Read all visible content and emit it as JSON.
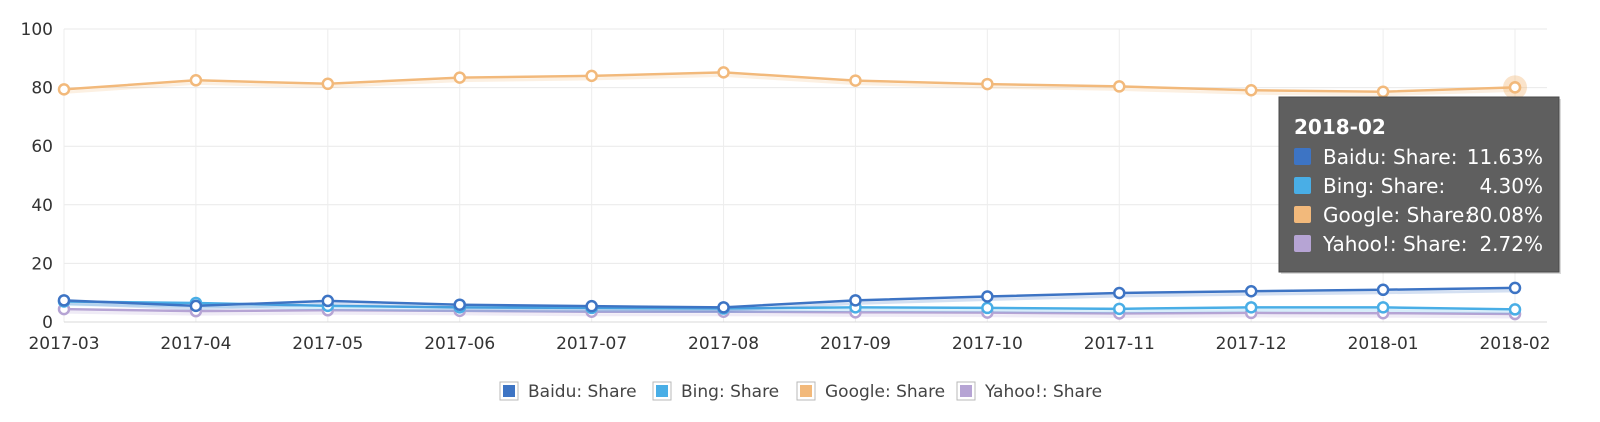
{
  "chart_data": {
    "type": "line",
    "categories": [
      "2017-03",
      "2017-04",
      "2017-05",
      "2017-06",
      "2017-07",
      "2017-08",
      "2017-09",
      "2017-10",
      "2017-11",
      "2017-12",
      "2018-01",
      "2018-02"
    ],
    "ylim": [
      0,
      100
    ],
    "yticks": [
      0,
      20,
      40,
      60,
      80,
      100
    ],
    "grid": true,
    "legend_position": "bottom",
    "series": [
      {
        "name": "Baidu: Share",
        "color": "#3d74c4",
        "values": [
          7.4,
          5.5,
          7.2,
          5.9,
          5.4,
          5.0,
          7.4,
          8.7,
          9.9,
          10.5,
          11.0,
          11.63
        ]
      },
      {
        "name": "Bing: Share",
        "color": "#49aee6",
        "values": [
          7.0,
          6.5,
          5.5,
          5.0,
          4.8,
          4.6,
          5.0,
          4.8,
          4.5,
          5.0,
          5.0,
          4.3
        ]
      },
      {
        "name": "Google: Share",
        "color": "#f2b97b",
        "values": [
          79.4,
          82.5,
          81.3,
          83.4,
          84.0,
          85.2,
          82.4,
          81.2,
          80.4,
          79.1,
          78.6,
          80.08
        ]
      },
      {
        "name": "Yahoo!: Share",
        "color": "#b6a4d4",
        "values": [
          4.4,
          3.7,
          4.0,
          3.8,
          3.5,
          3.5,
          3.3,
          3.2,
          2.9,
          3.1,
          3.0,
          2.72
        ]
      }
    ],
    "tooltip": {
      "title": "2018-02",
      "category_index": 11,
      "rows": [
        {
          "label": "Baidu: Share:",
          "value": "11.63%",
          "color": "#3d74c4"
        },
        {
          "label": "Bing: Share:",
          "value": "4.30%",
          "color": "#49aee6"
        },
        {
          "label": "Google: Share:",
          "value": "80.08%",
          "color": "#f2b97b"
        },
        {
          "label": "Yahoo!: Share:",
          "value": "2.72%",
          "color": "#b6a4d4"
        }
      ]
    }
  }
}
